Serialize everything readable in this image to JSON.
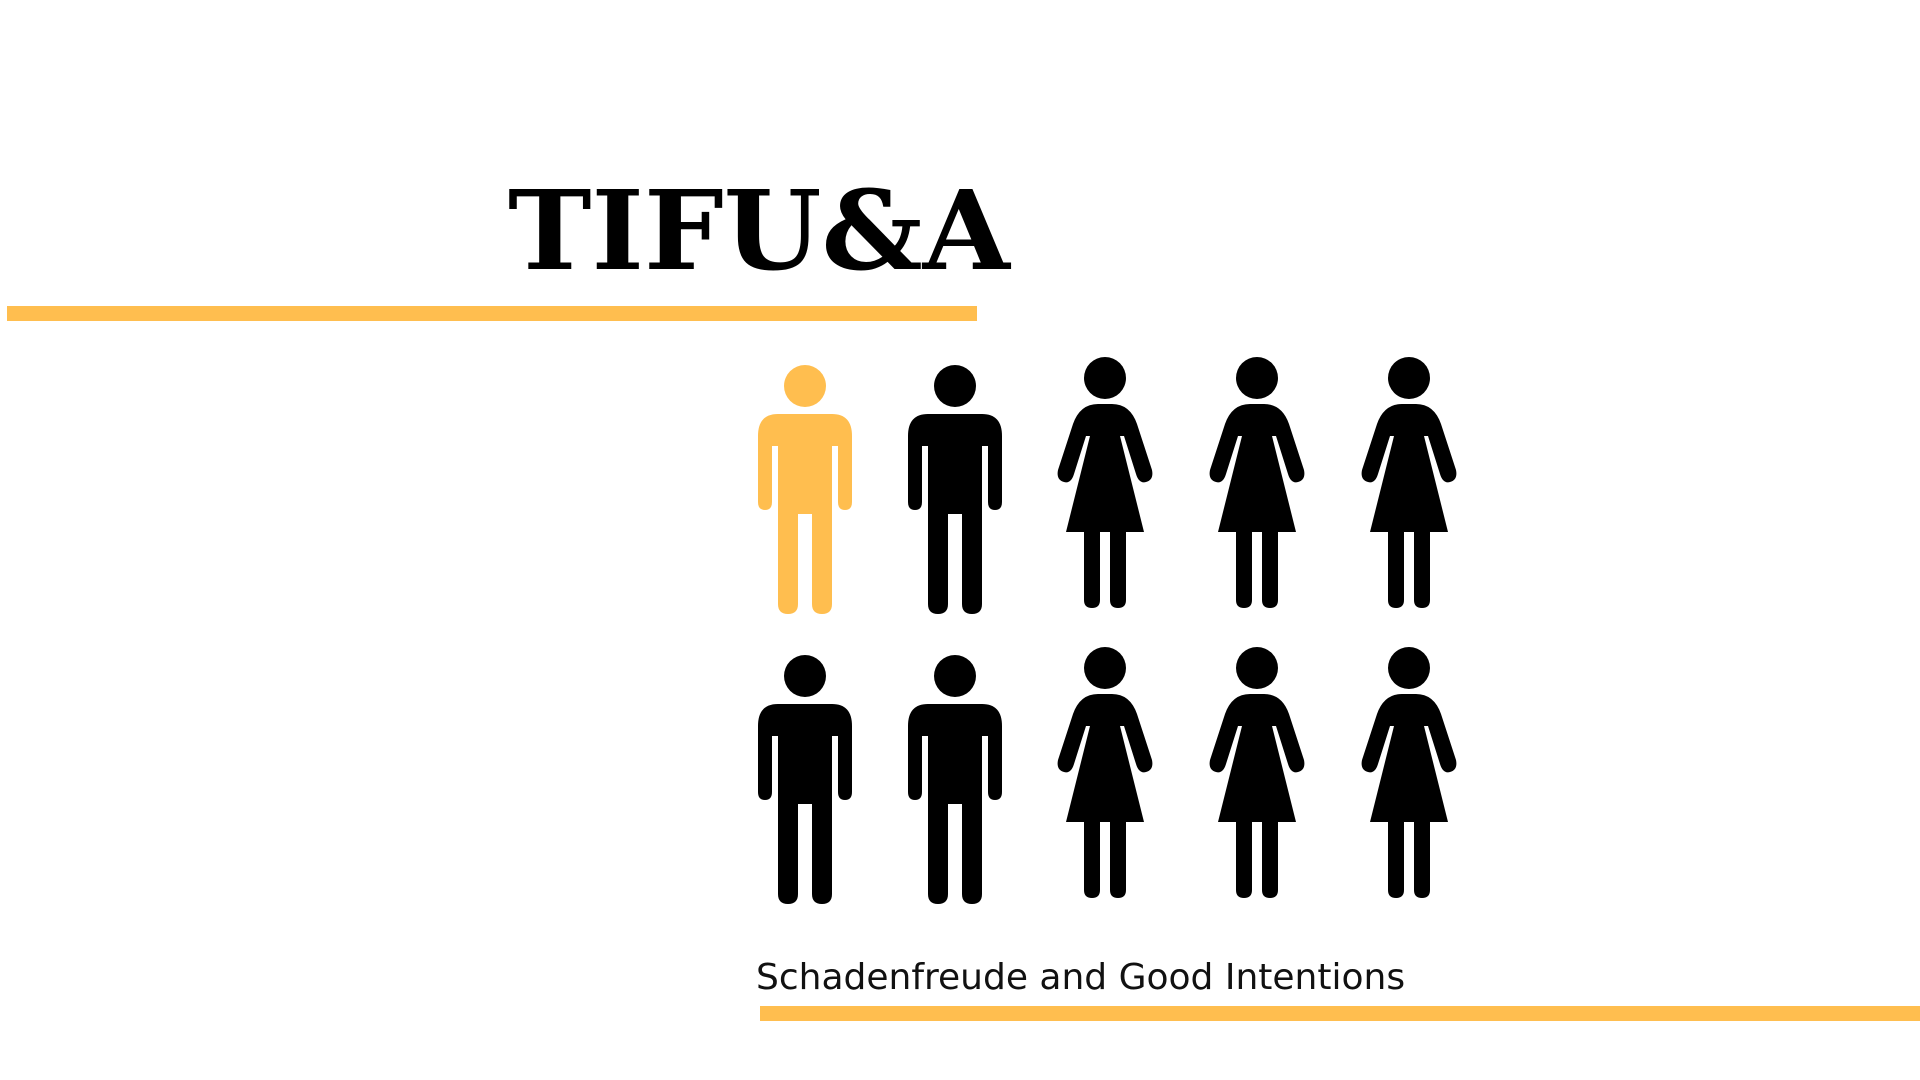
{
  "slide": {
    "title": "TIFU&A",
    "subtitle": "Schadenfreude and Good Intentions",
    "accent_color": "#FFBE4F",
    "figure_color": "#000000"
  },
  "figures": {
    "row1": [
      {
        "type": "man-icon",
        "highlighted": true
      },
      {
        "type": "man-icon",
        "highlighted": false
      },
      {
        "type": "woman-icon",
        "highlighted": false
      },
      {
        "type": "woman-icon",
        "highlighted": false
      },
      {
        "type": "woman-icon",
        "highlighted": false
      }
    ],
    "row2": [
      {
        "type": "man-icon",
        "highlighted": false
      },
      {
        "type": "man-icon",
        "highlighted": false
      },
      {
        "type": "woman-icon",
        "highlighted": false
      },
      {
        "type": "woman-icon",
        "highlighted": false
      },
      {
        "type": "woman-icon",
        "highlighted": false
      }
    ]
  }
}
